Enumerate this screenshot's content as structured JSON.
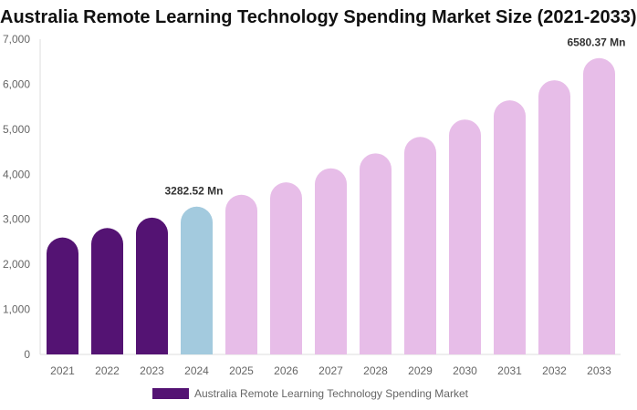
{
  "chart_data": {
    "type": "bar",
    "title": "Australia Remote Learning Technology Spending Market Size (2021-2033)",
    "categories": [
      "2021",
      "2022",
      "2023",
      "2024",
      "2025",
      "2026",
      "2027",
      "2028",
      "2029",
      "2030",
      "2031",
      "2032",
      "2033"
    ],
    "series": [
      {
        "name": "Australia Remote Learning Technology Spending Market",
        "values": [
          2597,
          2806,
          3038,
          3282.52,
          3545,
          3821,
          4133,
          4464,
          4830,
          5215,
          5641,
          6088,
          6580.37
        ]
      }
    ],
    "data_labels": [
      {
        "category": "2024",
        "text": "3282.52 Mn"
      },
      {
        "category": "2033",
        "text": "6580.37 Mn"
      }
    ],
    "ylim": [
      0,
      7000
    ],
    "yticks": [
      "0",
      "1,000",
      "2,000",
      "3,000",
      "4,000",
      "5,000",
      "6,000",
      "7,000"
    ],
    "xlabel": "",
    "ylabel": "",
    "grid": false,
    "legend_position": "bottom",
    "colors": {
      "historical": "#541373",
      "base_year": "#a3cade",
      "forecast": "#e7bde8",
      "legend": "#541373"
    }
  }
}
